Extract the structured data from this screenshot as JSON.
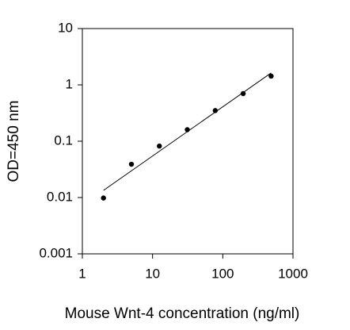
{
  "chart_data": {
    "type": "scatter",
    "x_label": "Mouse Wnt-4 concentration (ng/ml)",
    "y_label": "OD=450 nm",
    "x": [
      2,
      5,
      12.5,
      31.25,
      78.125,
      195.3,
      488.3
    ],
    "values": [
      0.0098,
      0.039,
      0.082,
      0.16,
      0.35,
      0.7,
      1.43
    ],
    "color": "#000000",
    "fit_line": {
      "x": [
        2,
        488.3
      ],
      "values": [
        0.0134,
        1.63
      ],
      "color": "#000000"
    },
    "log_x": true,
    "log_y": true,
    "xlim": [
      1,
      1000
    ],
    "ylim": [
      0.001,
      10
    ],
    "xticks": [
      1,
      10,
      100,
      1000
    ],
    "yticks": [
      0.001,
      0.01,
      0.1,
      1,
      10
    ]
  }
}
